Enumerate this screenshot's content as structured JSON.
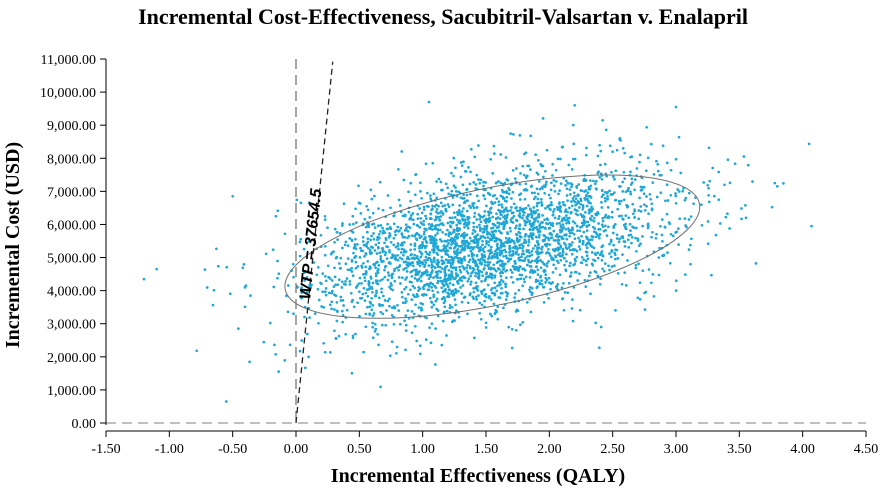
{
  "chart_data": {
    "type": "scatter",
    "title": "Incremental Cost-Effectiveness, Sacubitril-Valsartan v. Enalapril",
    "xlabel": "Incremental Effectiveness (QALY)",
    "ylabel": "Incremental Cost (USD)",
    "xlim": [
      -1.5,
      4.5
    ],
    "ylim": [
      0,
      11000
    ],
    "xticks": [
      -1.5,
      -1.0,
      -0.5,
      0.0,
      0.5,
      1.0,
      1.5,
      2.0,
      2.5,
      3.0,
      3.5,
      4.0,
      4.5
    ],
    "xtick_labels": [
      "-1.50",
      "-1.00",
      "-0.50",
      "0.00",
      "0.50",
      "1.00",
      "1.50",
      "2.00",
      "2.50",
      "3.00",
      "3.50",
      "4.00",
      "4.50"
    ],
    "yticks": [
      0,
      1000,
      2000,
      3000,
      4000,
      5000,
      6000,
      7000,
      8000,
      9000,
      10000,
      11000
    ],
    "ytick_labels": [
      "0.00",
      "1,000.00",
      "2,000.00",
      "3,000.00",
      "4,000.00",
      "5,000.00",
      "6,000.00",
      "7,000.00",
      "8,000.00",
      "9,000.00",
      "10,000.00",
      "11,000.00"
    ],
    "point_color": "#1fa7d6",
    "n_points": 3000,
    "cloud": {
      "mean_x": 1.5,
      "mean_y": 5400,
      "sd_x": 0.72,
      "sd_y": 1200,
      "correlation": 0.45,
      "x_range": [
        -1.2,
        4.1
      ],
      "y_range": [
        600,
        9800
      ]
    },
    "outliers": [
      {
        "x": -1.2,
        "y": 4350
      },
      {
        "x": -1.1,
        "y": 4650
      },
      {
        "x": -0.55,
        "y": 650
      },
      {
        "x": -0.5,
        "y": 6850
      },
      {
        "x": 4.07,
        "y": 5950
      },
      {
        "x": 3.78,
        "y": 7250
      },
      {
        "x": 3.8,
        "y": 7150
      },
      {
        "x": 1.05,
        "y": 9700
      },
      {
        "x": 2.2,
        "y": 9600
      },
      {
        "x": 3.0,
        "y": 9550
      }
    ],
    "confidence_ellipse": {
      "center_x": 1.55,
      "center_y": 5330,
      "semi_axis_x": 1.67,
      "semi_axis_y": 2850,
      "rotation_data_points": [
        {
          "x": -0.2,
          "y": 4370
        },
        {
          "x": 3.1,
          "y": 7000
        }
      ]
    },
    "wtp_line": {
      "label": "WTP = 37654.5",
      "slope_usd_per_qaly": 37654.5,
      "x_from": 0,
      "x_to": 0.29
    },
    "vertical_reference_x": 0,
    "horizontal_reference_y": 0,
    "grid": false
  }
}
